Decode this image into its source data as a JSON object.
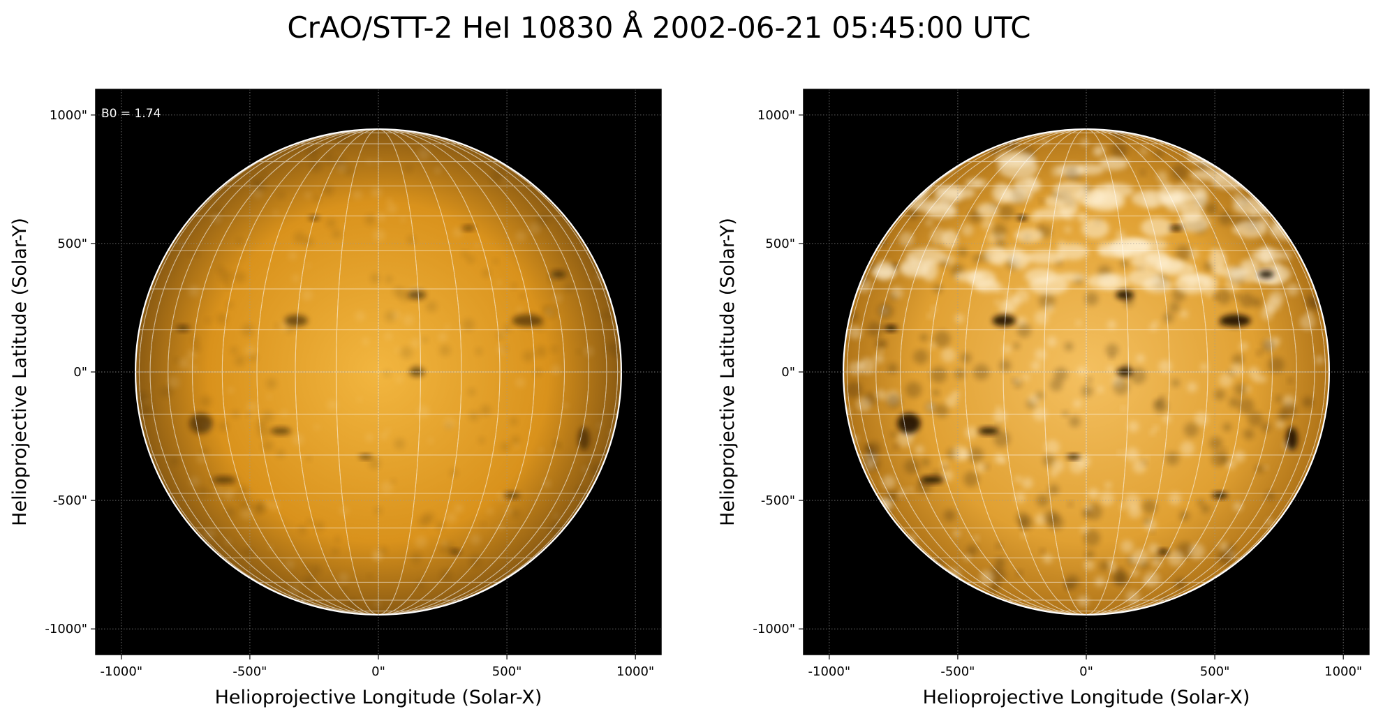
{
  "figure": {
    "title": "CrAO/STT-2 HeI 10830 Å 2002-06-21 05:45:00 UTC"
  },
  "panels": [
    {
      "id": "left",
      "annotation": "B0 = 1.74",
      "xlabel": "Helioprojective Longitude (Solar-X)",
      "ylabel": "Helioprojective Latitude (Solar-Y)",
      "xticks": [
        "-1000\"",
        "-500\"",
        "0\"",
        "500\"",
        "1000\""
      ],
      "yticks": [
        "1000\"",
        "500\"",
        "0\"",
        "-500\"",
        "-1000\""
      ],
      "xlim": [
        -1100,
        1100
      ],
      "ylim": [
        -1100,
        1100
      ],
      "tick_values": [
        -1000,
        -500,
        0,
        500,
        1000
      ],
      "solar_radius_arcsec": 945,
      "contrast": "low",
      "disk_colors": {
        "center": "#f2b640",
        "mid": "#d9921c",
        "limb": "#8a5a12"
      }
    },
    {
      "id": "right",
      "annotation": "",
      "xlabel": "Helioprojective Longitude (Solar-X)",
      "ylabel": "Helioprojective Latitude (Solar-Y)",
      "xticks": [
        "-1000\"",
        "-500\"",
        "0\"",
        "500\"",
        "1000\""
      ],
      "yticks": [
        "1000\"",
        "500\"",
        "0\"",
        "-500\"",
        "-1000\""
      ],
      "xlim": [
        -1100,
        1100
      ],
      "ylim": [
        -1100,
        1100
      ],
      "tick_values": [
        -1000,
        -500,
        0,
        500,
        1000
      ],
      "solar_radius_arcsec": 945,
      "contrast": "high",
      "disk_colors": {
        "center": "#f4c060",
        "mid": "#e0a032",
        "limb": "#b07418"
      }
    }
  ],
  "colors": {
    "background": "#000000",
    "limb_line": "#ffffff",
    "grid_line": "#ffffff",
    "dark_feature": "#1e0e00",
    "bright_feature": "#fff2d6"
  }
}
